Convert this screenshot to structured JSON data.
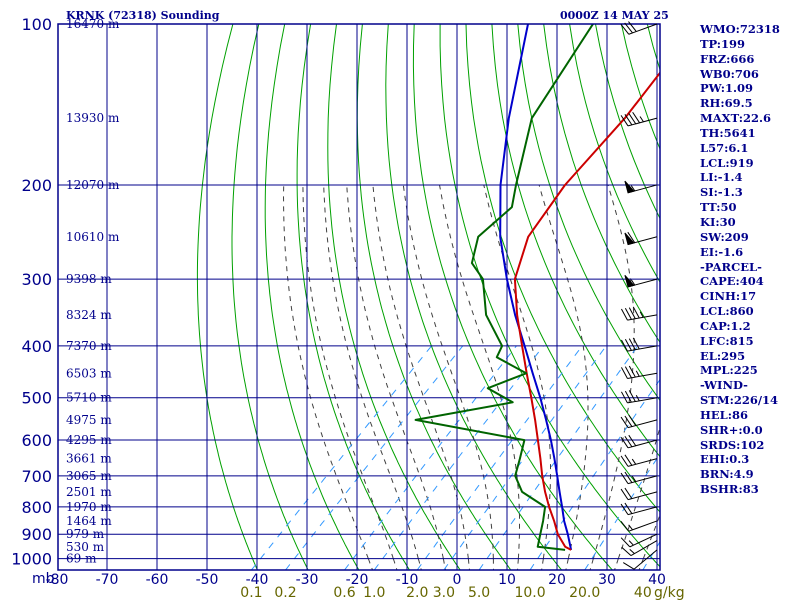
{
  "header": {
    "title": "KRNK (72318) Sounding",
    "datetime": "0000Z 14 MAY 25"
  },
  "indices": [
    "WMO:72318",
    "TP:199",
    "FRZ:666",
    "WB0:706",
    "PW:1.09",
    "RH:69.5",
    "MAXT:22.6",
    "TH:5641",
    "L57:6.1",
    "LCL:919",
    "LI:-1.4",
    "SI:-1.3",
    "TT:50",
    "KI:30",
    "SW:209",
    "EI:-1.6",
    "-PARCEL-",
    "CAPE:404",
    "CINH:17",
    "LCL:860",
    "CAP:1.2",
    "LFC:815",
    "EL:295",
    "MPL:225",
    "-WIND-",
    "STM:226/14",
    "HEL:86",
    "SHR+:0.0",
    "SRDS:102",
    "EHI:0.3",
    "BRN:4.9",
    "BSHR:83"
  ],
  "colors": {
    "grid": "#00008b",
    "dry_adiabat": "#00a000",
    "moist_adiabat": "#404040",
    "mixing_ratio": "#3399ff",
    "temperature": "#cc0000",
    "dewpoint": "#006400",
    "parcel": "#0000cc",
    "text": "#00008b",
    "mixing_label": "#666600"
  },
  "chart_data": {
    "type": "skew-t",
    "title": "KRNK (72318) Sounding",
    "datetime": "0000Z 14 MAY 25",
    "pressure_axis_label": "mb",
    "pressure_ticks": [
      100,
      200,
      300,
      400,
      500,
      600,
      700,
      800,
      900,
      1000
    ],
    "temperature_ticks": [
      -80,
      -70,
      -60,
      -50,
      -40,
      -30,
      -20,
      -10,
      0,
      10,
      20,
      30,
      40
    ],
    "temperature_tick_labels": [
      "-80",
      "-70",
      "-60",
      "-50",
      "-40",
      "-30",
      "-20",
      "-10",
      "0",
      "10",
      "20",
      "30",
      "40"
    ],
    "height_labels": [
      {
        "p": 100,
        "label": "16470 m"
      },
      {
        "p": 150,
        "label": "13930 m"
      },
      {
        "p": 200,
        "label": "12070 m"
      },
      {
        "p": 250,
        "label": "10610 m"
      },
      {
        "p": 300,
        "label": "9398 m"
      },
      {
        "p": 350,
        "label": "8324 m"
      },
      {
        "p": 400,
        "label": "7370 m"
      },
      {
        "p": 450,
        "label": "6503 m"
      },
      {
        "p": 500,
        "label": "5710 m"
      },
      {
        "p": 550,
        "label": "4975 m"
      },
      {
        "p": 600,
        "label": "4295 m"
      },
      {
        "p": 650,
        "label": "3661 m"
      },
      {
        "p": 700,
        "label": "3065 m"
      },
      {
        "p": 750,
        "label": "2501 m"
      },
      {
        "p": 800,
        "label": "1970 m"
      },
      {
        "p": 850,
        "label": "1464 m"
      },
      {
        "p": 900,
        "label": "979 m"
      },
      {
        "p": 950,
        "label": "530 m"
      },
      {
        "p": 1000,
        "label": "69 m"
      }
    ],
    "mixing_ratio_labels": [
      {
        "w": 0.1,
        "label": "0.1"
      },
      {
        "w": 0.2,
        "label": "0.2"
      },
      {
        "w": 0.6,
        "label": "0.6"
      },
      {
        "w": 1.0,
        "label": "1.0"
      },
      {
        "w": 2.0,
        "label": "2.0"
      },
      {
        "w": 3.0,
        "label": "3.0"
      },
      {
        "w": 5.0,
        "label": "5.0"
      },
      {
        "w": 10.0,
        "label": "10.0"
      },
      {
        "w": 20.0,
        "label": "20.0"
      },
      {
        "w": 40.0,
        "label": "40"
      }
    ],
    "mixing_unit": "g/kg",
    "temperature_profile": [
      [
        963,
        18.8
      ],
      [
        950,
        17.0
      ],
      [
        900,
        13.0
      ],
      [
        850,
        9.6
      ],
      [
        800,
        5.8
      ],
      [
        750,
        2.0
      ],
      [
        700,
        -1.8
      ],
      [
        650,
        -5.6
      ],
      [
        600,
        -9.8
      ],
      [
        550,
        -14.4
      ],
      [
        500,
        -19.6
      ],
      [
        450,
        -25.4
      ],
      [
        400,
        -31.8
      ],
      [
        350,
        -39.0
      ],
      [
        300,
        -46.6
      ],
      [
        250,
        -52.4
      ],
      [
        200,
        -55.4
      ],
      [
        150,
        -56.8
      ],
      [
        100,
        -61.0
      ]
    ],
    "dewpoint_profile": [
      [
        963,
        17.6
      ],
      [
        950,
        11.5
      ],
      [
        900,
        9.5
      ],
      [
        850,
        7.4
      ],
      [
        800,
        5.0
      ],
      [
        750,
        -2.6
      ],
      [
        700,
        -7.2
      ],
      [
        650,
        -9.7
      ],
      [
        600,
        -12.5
      ],
      [
        550,
        -38.3
      ],
      [
        510,
        -22.4
      ],
      [
        480,
        -30.2
      ],
      [
        450,
        -25.5
      ],
      [
        420,
        -34.6
      ],
      [
        400,
        -35.8
      ],
      [
        350,
        -45.2
      ],
      [
        300,
        -53.0
      ],
      [
        280,
        -58.4
      ],
      [
        250,
        -62.4
      ],
      [
        220,
        -61.6
      ],
      [
        200,
        -65.2
      ],
      [
        150,
        -75.4
      ],
      [
        100,
        -82.0
      ]
    ],
    "parcel_profile": [
      [
        963,
        18.8
      ],
      [
        900,
        15.0
      ],
      [
        850,
        11.6
      ],
      [
        800,
        8.4
      ],
      [
        750,
        4.9
      ],
      [
        700,
        1.2
      ],
      [
        650,
        -2.8
      ],
      [
        600,
        -7.2
      ],
      [
        550,
        -12.2
      ],
      [
        500,
        -17.8
      ],
      [
        450,
        -24.2
      ],
      [
        400,
        -31.3
      ],
      [
        350,
        -39.4
      ],
      [
        300,
        -48.2
      ],
      [
        250,
        -58.0
      ],
      [
        200,
        -68.3
      ],
      [
        150,
        -80.0
      ],
      [
        100,
        -95.0
      ]
    ],
    "wind_barbs": [
      {
        "p": 963,
        "dir": 230,
        "spd": 10
      },
      {
        "p": 925,
        "dir": 240,
        "spd": 15
      },
      {
        "p": 900,
        "dir": 245,
        "spd": 15
      },
      {
        "p": 850,
        "dir": 250,
        "spd": 15
      },
      {
        "p": 800,
        "dir": 255,
        "spd": 20
      },
      {
        "p": 750,
        "dir": 255,
        "spd": 20
      },
      {
        "p": 700,
        "dir": 255,
        "spd": 25
      },
      {
        "p": 650,
        "dir": 255,
        "spd": 25
      },
      {
        "p": 600,
        "dir": 255,
        "spd": 30
      },
      {
        "p": 550,
        "dir": 255,
        "spd": 30
      },
      {
        "p": 500,
        "dir": 260,
        "spd": 35
      },
      {
        "p": 450,
        "dir": 260,
        "spd": 35
      },
      {
        "p": 400,
        "dir": 260,
        "spd": 40
      },
      {
        "p": 350,
        "dir": 260,
        "spd": 45
      },
      {
        "p": 300,
        "dir": 255,
        "spd": 55
      },
      {
        "p": 250,
        "dir": 255,
        "spd": 60
      },
      {
        "p": 200,
        "dir": 255,
        "spd": 55
      },
      {
        "p": 150,
        "dir": 255,
        "spd": 45
      },
      {
        "p": 100,
        "dir": 250,
        "spd": 30
      }
    ]
  }
}
